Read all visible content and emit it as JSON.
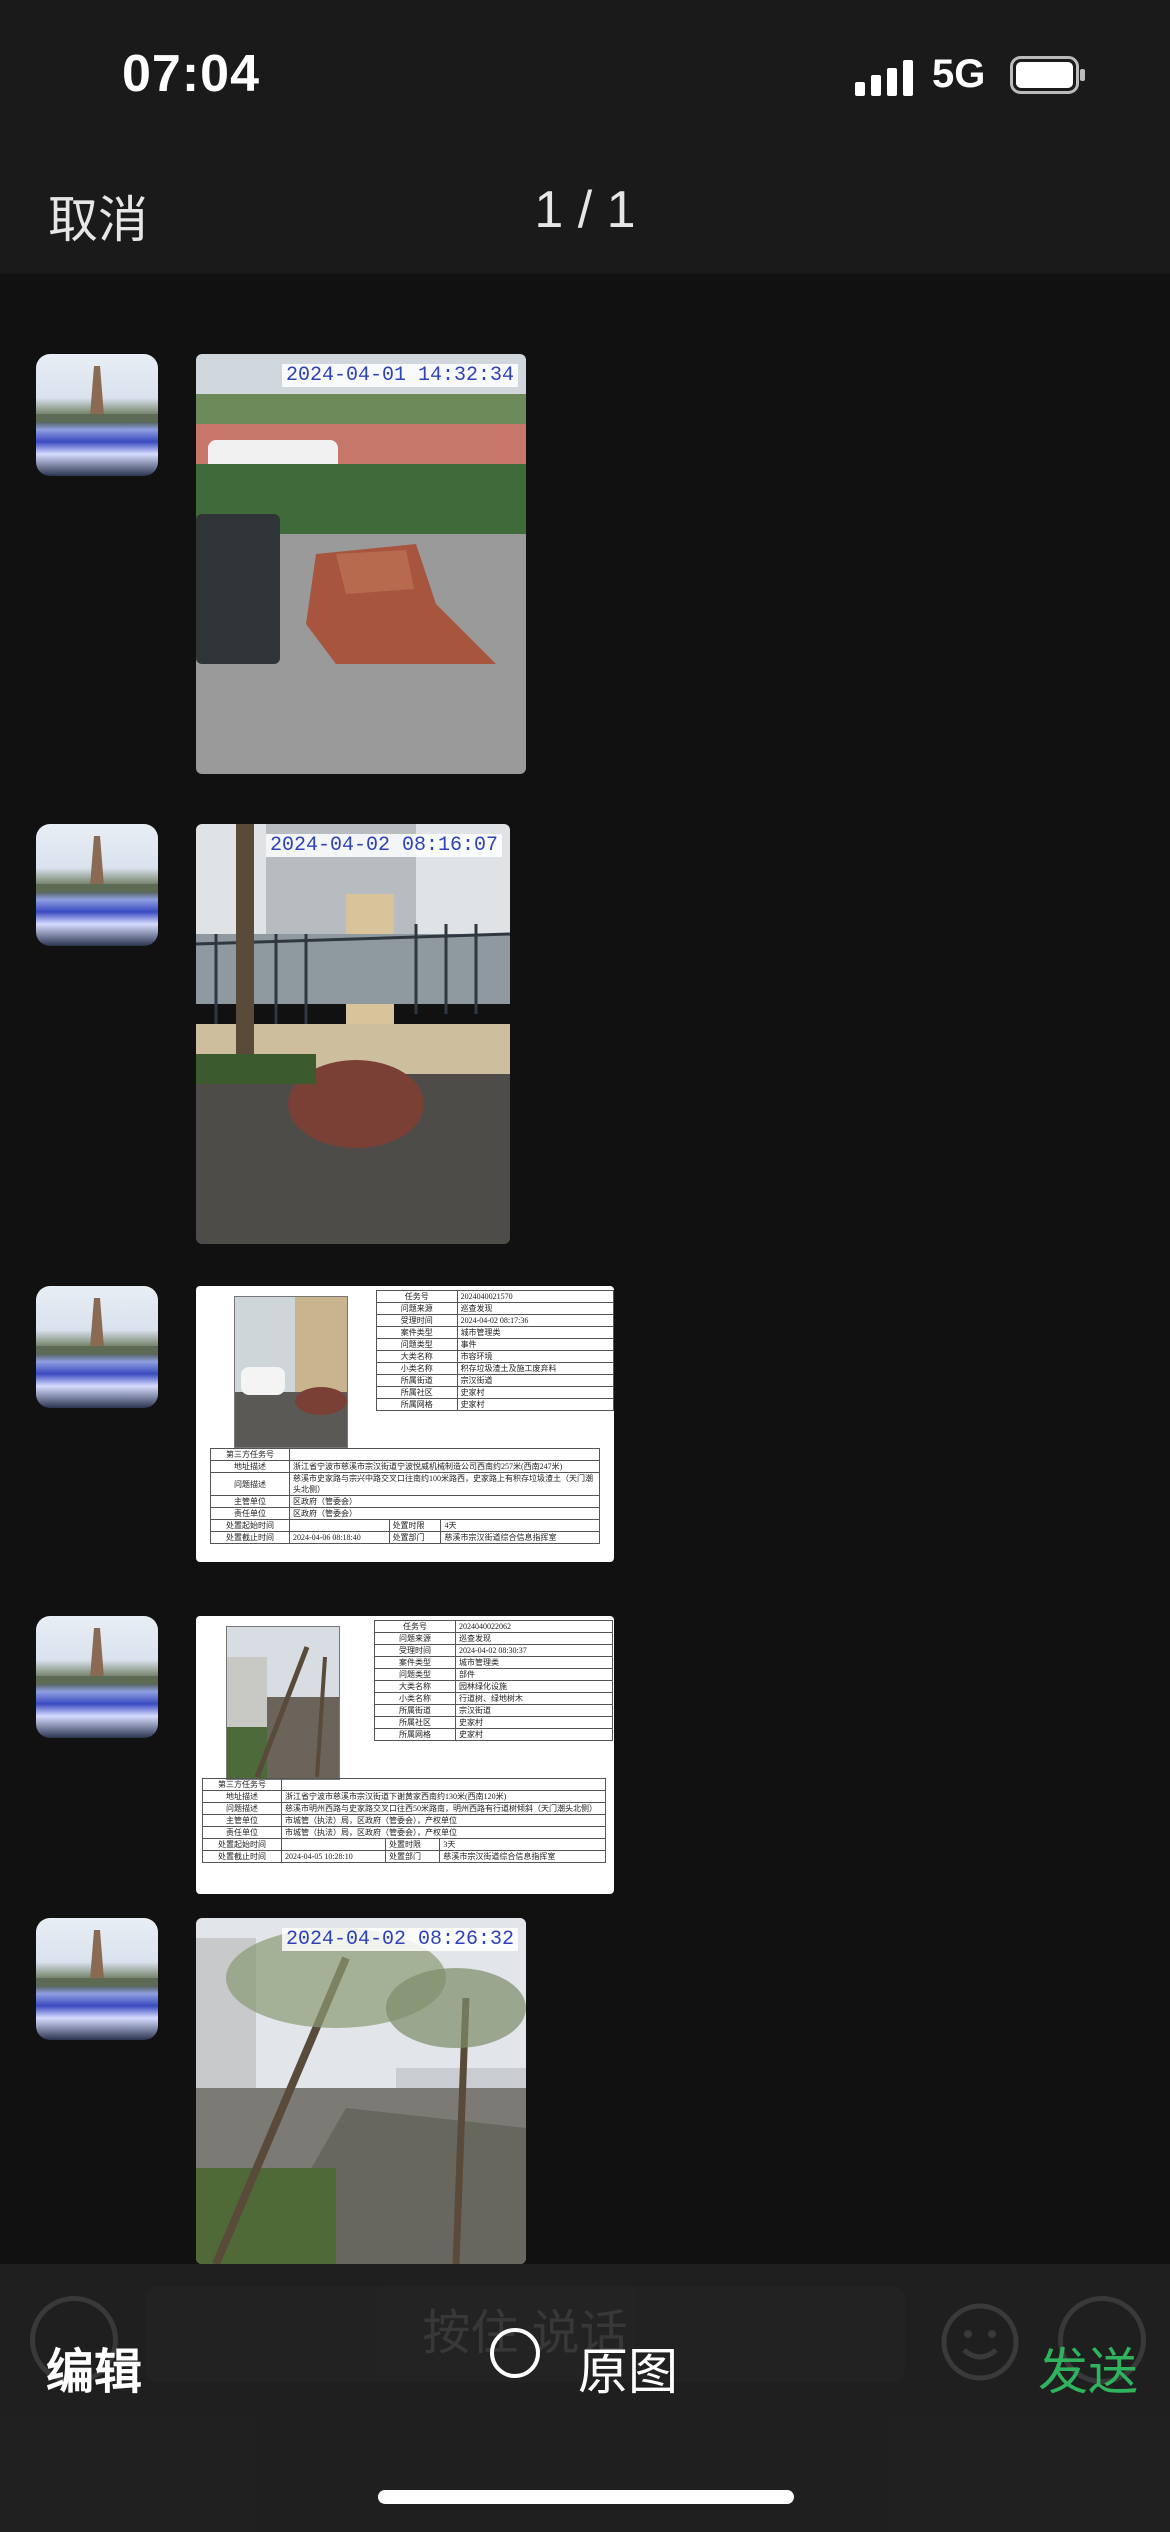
{
  "status_bar": {
    "time": "07:04",
    "network": "5G",
    "signal_icon": "cellular-signal-icon",
    "battery_icon": "battery-icon"
  },
  "header": {
    "cancel_label": "取消",
    "counter": "1 / 1"
  },
  "images": [
    {
      "kind": "photo",
      "timestamp": "2024-04-01 14:32:34"
    },
    {
      "kind": "photo",
      "timestamp": "2024-04-02 08:16:07"
    },
    {
      "kind": "form",
      "top_rows": [
        [
          "任务号",
          "2024040021570"
        ],
        [
          "问题来源",
          "巡查发现"
        ],
        [
          "受理时间",
          "2024-04-02 08:17:36"
        ],
        [
          "案件类型",
          "城市管理类"
        ],
        [
          "问题类型",
          "事件"
        ],
        [
          "大类名称",
          "市容环境"
        ],
        [
          "小类名称",
          "积存垃圾渣土及施工废弃料"
        ],
        [
          "所属街道",
          "宗汉街道"
        ],
        [
          "所属社区",
          "史家村"
        ],
        [
          "所属网格",
          "史家村"
        ]
      ],
      "bottom_rows": [
        [
          "第三方任务号",
          ""
        ],
        [
          "地址描述",
          "浙江省宁波市慈溪市宗汉街道宁波悦威机械制造公司西南约257米(西南247米)"
        ],
        [
          "问题描述",
          "慈溪市史家路与宗兴中路交叉口往南约100米路西，史家路上有积存垃圾渣土（天门潮头北侧）"
        ],
        [
          "主管单位",
          "区政府（管委会）"
        ],
        [
          "责任单位",
          "区政府（管委会）"
        ]
      ],
      "footer_rows": [
        [
          "处置起始时间",
          "",
          "处置时限",
          "4天"
        ],
        [
          "处置截止时间",
          "2024-04-06 08:18:40",
          "处置部门",
          "慈溪市宗汉街道综合信息指挥室"
        ]
      ]
    },
    {
      "kind": "form",
      "top_rows": [
        [
          "任务号",
          "2024040022062"
        ],
        [
          "问题来源",
          "巡查发现"
        ],
        [
          "受理时间",
          "2024-04-02 08:30:37"
        ],
        [
          "案件类型",
          "城市管理类"
        ],
        [
          "问题类型",
          "部件"
        ],
        [
          "大类名称",
          "园林绿化设施"
        ],
        [
          "小类名称",
          "行道树、绿地树木"
        ],
        [
          "所属街道",
          "宗汉街道"
        ],
        [
          "所属社区",
          "史家村"
        ],
        [
          "所属网格",
          "史家村"
        ]
      ],
      "bottom_rows": [
        [
          "第三方任务号",
          ""
        ],
        [
          "地址描述",
          "浙江省宁波市慈溪市宗汉街道下谢黄家西南约130米(西南120米)"
        ],
        [
          "问题描述",
          "慈溪市明州西路与史家路交叉口往西50米路南，明州西路有行道树倾斜（天门潮头北侧）"
        ],
        [
          "主管单位",
          "市城管（执法）局，区政府（管委会），产权单位"
        ],
        [
          "责任单位",
          "市城管（执法）局，区政府（管委会），产权单位"
        ]
      ],
      "footer_rows": [
        [
          "处置起始时间",
          "",
          "处置时限",
          "3天"
        ],
        [
          "处置截止时间",
          "2024-04-05 10:28:10",
          "处置部门",
          "慈溪市宗汉街道综合信息指挥室"
        ]
      ]
    },
    {
      "kind": "photo",
      "timestamp": "2024-04-02 08:26:32"
    }
  ],
  "bottom_bar": {
    "edit_label": "编辑",
    "original_label": "原图",
    "send_label": "发送",
    "ghost_input_text": "按住 说话"
  }
}
